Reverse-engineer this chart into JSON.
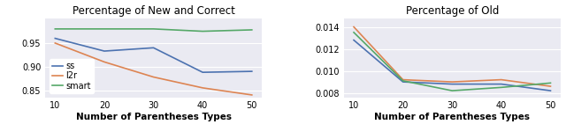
{
  "x": [
    10,
    20,
    30,
    40,
    50
  ],
  "left_title": "Percentage of New and Correct",
  "right_title": "Percentage of Old",
  "xlabel": "Number of Parentheses Types",
  "left": {
    "ss": [
      0.96,
      0.933,
      0.94,
      0.888,
      0.89
    ],
    "l2r": [
      0.95,
      0.91,
      0.878,
      0.855,
      0.84
    ],
    "smart": [
      0.98,
      0.98,
      0.98,
      0.975,
      0.978
    ]
  },
  "right": {
    "ss": [
      0.0128,
      0.009,
      0.0088,
      0.0088,
      0.0082
    ],
    "l2r": [
      0.014,
      0.0092,
      0.009,
      0.0092,
      0.0086
    ],
    "smart": [
      0.0135,
      0.0091,
      0.0082,
      0.0085,
      0.0089
    ]
  },
  "left_ylim": [
    0.835,
    1.003
  ],
  "left_yticks": [
    0.85,
    0.9,
    0.95
  ],
  "right_ylim": [
    0.0076,
    0.0148
  ],
  "right_yticks": [
    0.008,
    0.01,
    0.012,
    0.014
  ],
  "colors": {
    "ss": "#4c72b0",
    "l2r": "#dd8452",
    "smart": "#55a868"
  },
  "bg_color": "#eaeaf2",
  "grid_color": "white",
  "legend_labels": [
    "ss",
    "l2r",
    "smart"
  ],
  "title_fontsize": 8.5,
  "label_fontsize": 7.5,
  "tick_fontsize": 7.0
}
